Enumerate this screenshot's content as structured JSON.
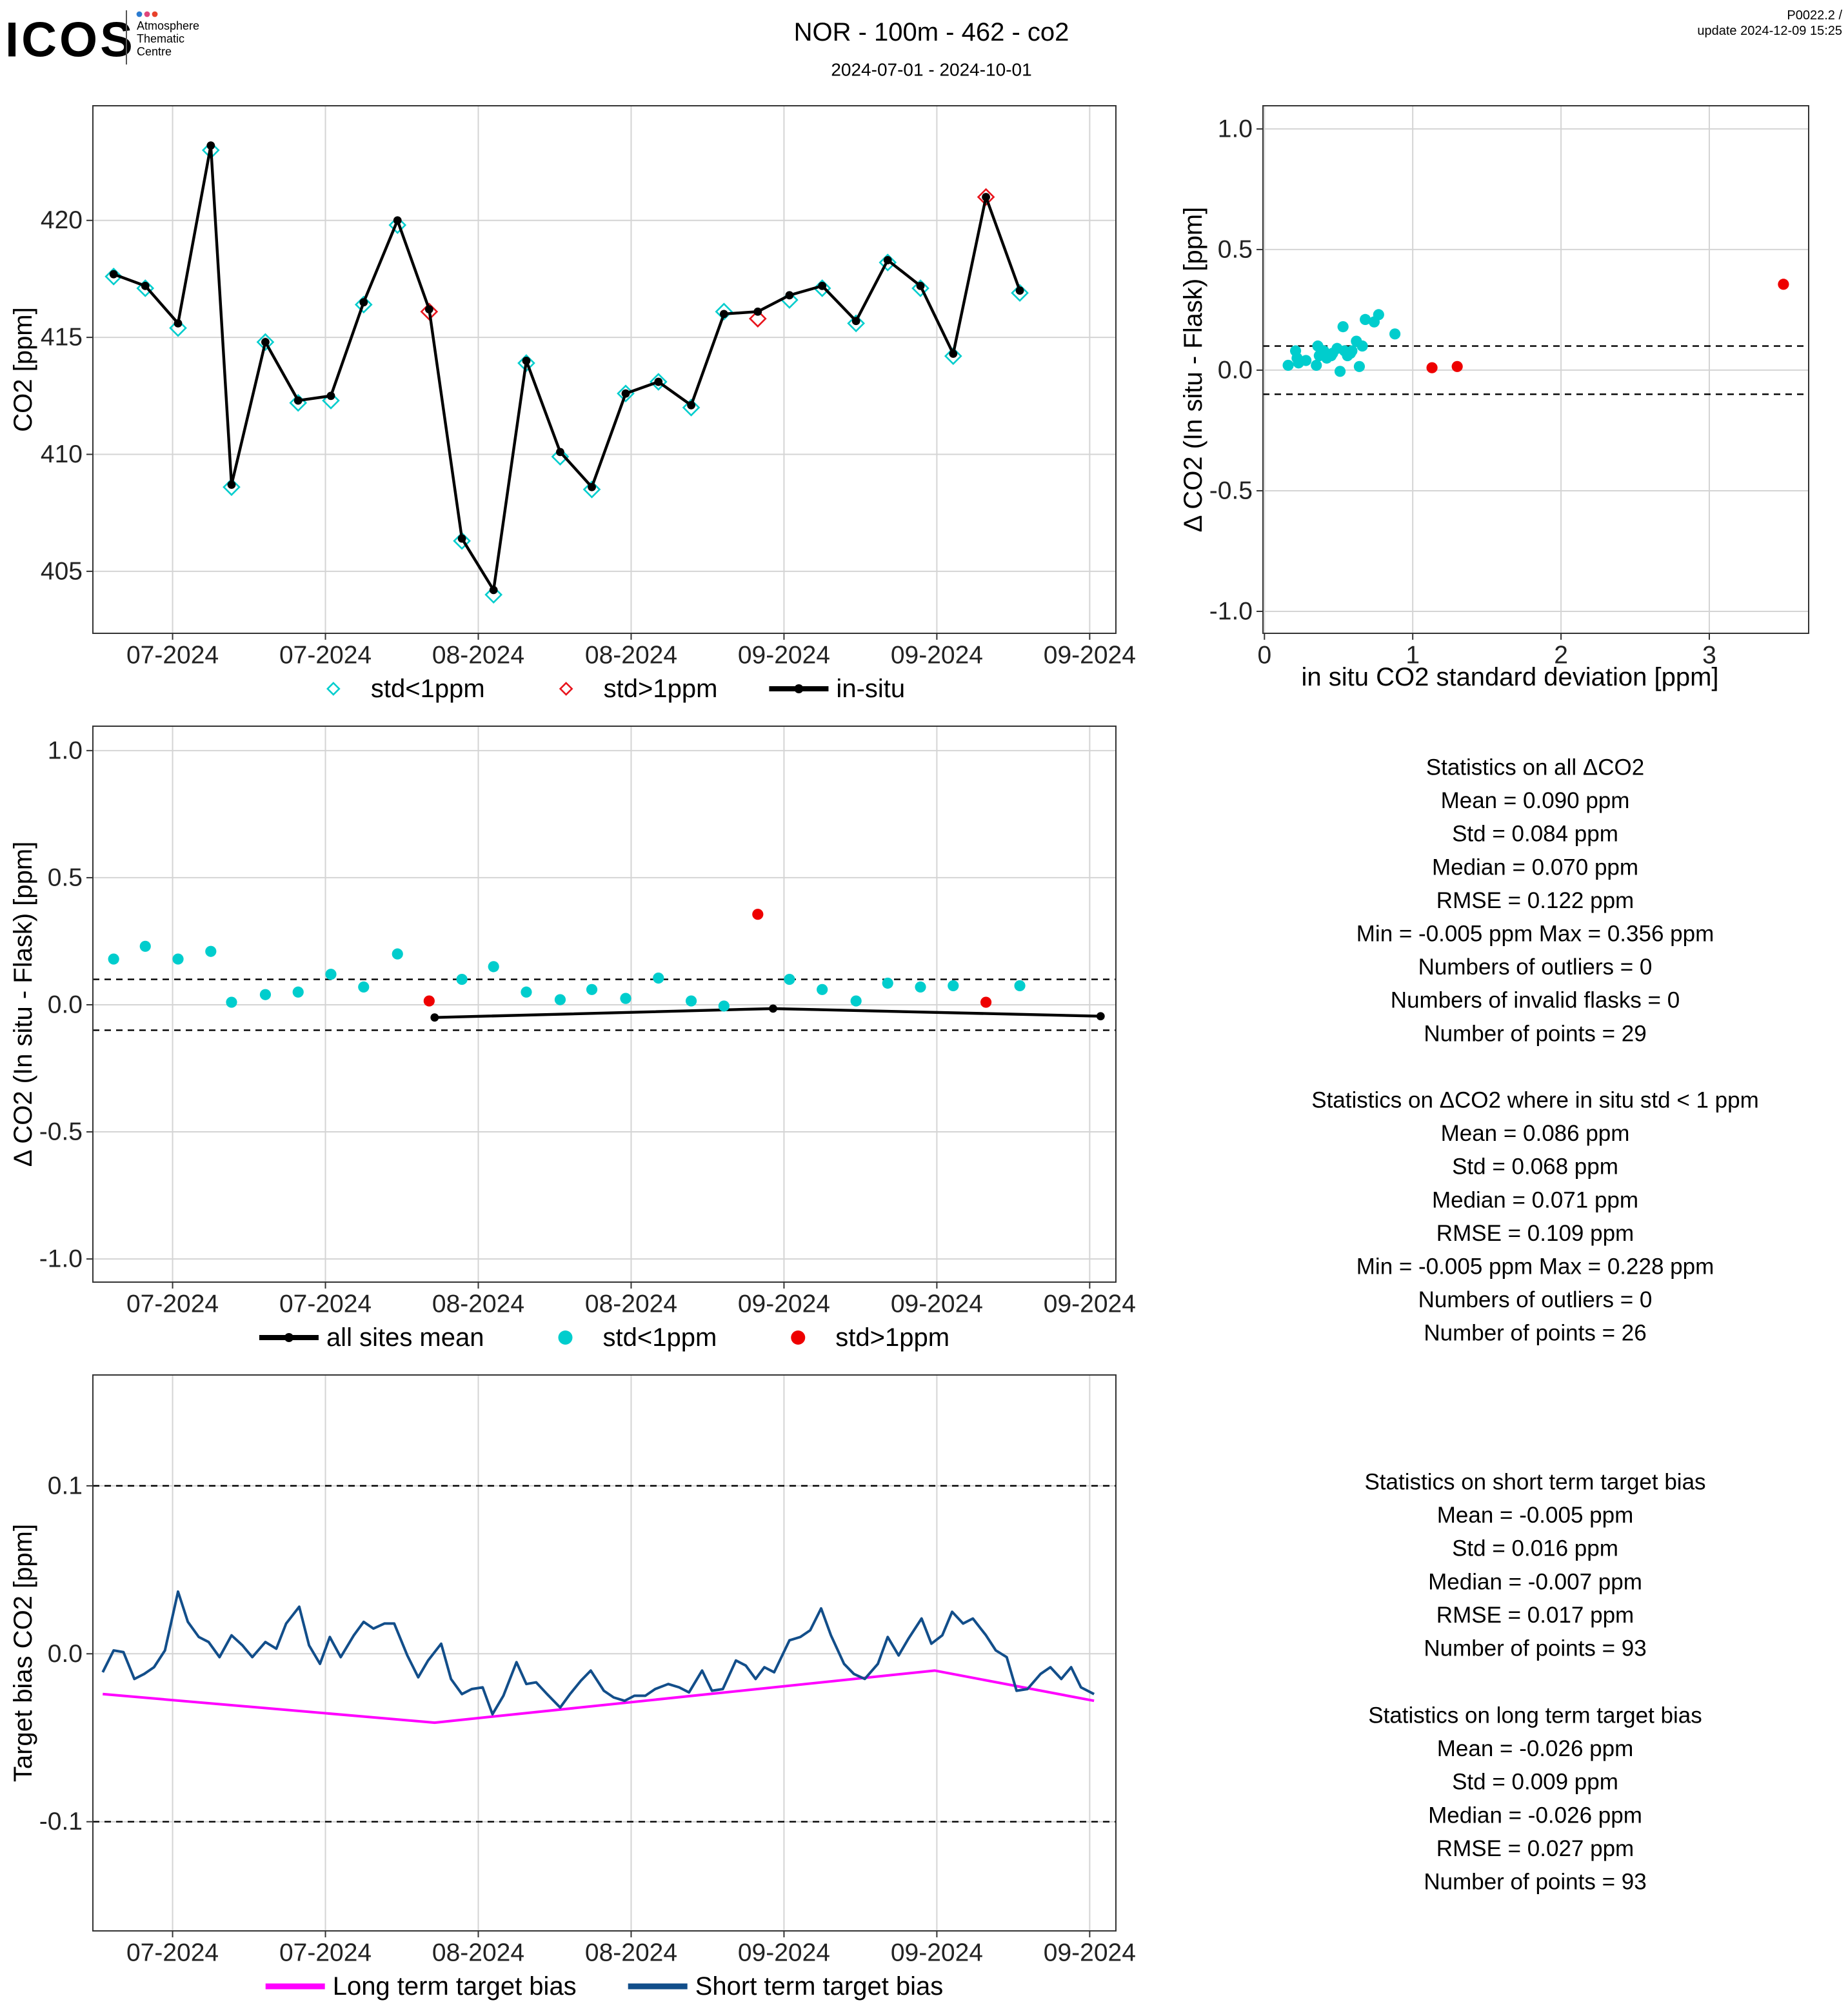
{
  "header": {
    "logo": "ICOS",
    "logo_lines": [
      "Atmosphere",
      "Thematic",
      "Centre"
    ],
    "title": "NOR - 100m - 462 - co2",
    "subtitle": "2024-07-01 - 2024-10-01",
    "corner_lines": [
      "P0022.2 /",
      "update  2024-12-09 15:25"
    ]
  },
  "chart_data": [
    {
      "type": "line",
      "y_label": "CO2 [ppm]",
      "grid": true,
      "legend": "bottom",
      "xlim": [
        -7.3,
        86.4
      ],
      "ylim": [
        402.35,
        424.9
      ],
      "xticks": [
        {
          "value": 0,
          "label": "07-2024"
        },
        {
          "value": 14,
          "label": "07-2024"
        },
        {
          "value": 28,
          "label": "08-2024"
        },
        {
          "value": 42,
          "label": "08-2024"
        },
        {
          "value": 56,
          "label": "09-2024"
        },
        {
          "value": 70,
          "label": "09-2024"
        },
        {
          "value": 84,
          "label": "09-2024"
        }
      ],
      "yticks": [
        405,
        410,
        415,
        420
      ],
      "series": [
        {
          "name": "std<1ppm",
          "color": "#00cdcd",
          "marker": "diamond",
          "x": [
            -5.4,
            -2.5,
            0.5,
            3.5,
            5.4,
            8.5,
            11.5,
            14.5,
            17.5,
            20.6,
            23.5,
            26.5,
            29.4,
            32.4,
            35.5,
            38.4,
            41.5,
            44.5,
            47.5,
            50.5,
            53.6,
            56.5,
            59.5,
            62.6,
            65.5,
            68.5,
            71.5,
            74.5,
            77.6
          ],
          "values": [
            417.6,
            417.1,
            415.4,
            423.0,
            408.6,
            414.8,
            412.2,
            412.3,
            416.4,
            419.8,
            null,
            406.3,
            404.0,
            413.9,
            409.9,
            408.5,
            412.6,
            413.1,
            412.0,
            416.1,
            null,
            416.6,
            417.1,
            415.6,
            418.2,
            417.1,
            414.2,
            null,
            416.9
          ]
        },
        {
          "name": "std>1ppm",
          "color": "#e8141c",
          "marker": "diamond",
          "x": [
            -5.4,
            -2.5,
            0.5,
            3.5,
            5.4,
            8.5,
            11.5,
            14.5,
            17.5,
            20.6,
            23.5,
            26.5,
            29.4,
            32.4,
            35.5,
            38.4,
            41.5,
            44.5,
            47.5,
            50.5,
            53.6,
            56.5,
            59.5,
            62.6,
            65.5,
            68.5,
            71.5,
            74.5,
            77.6
          ],
          "values": [
            null,
            null,
            null,
            null,
            null,
            null,
            null,
            null,
            null,
            null,
            416.1,
            null,
            null,
            null,
            null,
            null,
            null,
            null,
            null,
            null,
            415.8,
            null,
            null,
            null,
            null,
            null,
            null,
            421.0,
            null
          ]
        },
        {
          "name": "in-situ",
          "color": "#000000",
          "marker": "line-dot",
          "x": [
            -5.4,
            -2.5,
            0.5,
            3.5,
            5.4,
            8.5,
            11.5,
            14.5,
            17.5,
            20.6,
            23.5,
            26.5,
            29.4,
            32.4,
            35.5,
            38.4,
            41.5,
            44.5,
            47.5,
            50.5,
            53.6,
            56.5,
            59.5,
            62.6,
            65.5,
            68.5,
            71.5,
            74.5,
            77.6
          ],
          "values": [
            417.7,
            417.2,
            415.6,
            423.2,
            408.7,
            414.8,
            412.3,
            412.5,
            416.5,
            420.0,
            416.2,
            406.4,
            404.2,
            414.0,
            410.1,
            408.6,
            412.6,
            413.1,
            412.1,
            416.0,
            416.1,
            416.8,
            417.2,
            415.7,
            418.3,
            417.2,
            414.3,
            421.0,
            417.0
          ]
        }
      ]
    },
    {
      "type": "scatter",
      "x_label": "in situ CO2 standard deviation [ppm]",
      "y_label": "Δ CO2 (In situ - Flask) [ppm]",
      "grid": true,
      "xlim": [
        -0.01,
        3.67
      ],
      "ylim": [
        -1.091,
        1.096
      ],
      "xticks": [
        0,
        1,
        2,
        3
      ],
      "yticks": [
        {
          "value": -1,
          "label": "-1.0"
        },
        {
          "value": -0.5,
          "label": "-0.5"
        },
        {
          "value": 0,
          "label": "0.0"
        },
        {
          "value": 0.5,
          "label": "0.5"
        },
        {
          "value": 1,
          "label": "1.0"
        }
      ],
      "reference_lines": [
        0.1,
        -0.1
      ],
      "series": [
        {
          "color": "#00cdcd",
          "marker": "circle",
          "x": [
            0.16,
            0.21,
            0.23,
            0.28,
            0.35,
            0.36,
            0.37,
            0.4,
            0.42,
            0.46,
            0.49,
            0.51,
            0.53,
            0.54,
            0.56,
            0.58,
            0.59,
            0.62,
            0.64,
            0.66,
            0.68,
            0.74,
            0.77,
            0.88,
            0.22,
            0.45
          ],
          "values": [
            0.02,
            0.08,
            0.03,
            0.04,
            0.02,
            0.1,
            0.06,
            0.08,
            0.05,
            0.07,
            0.09,
            -0.005,
            0.18,
            0.08,
            0.06,
            0.07,
            0.08,
            0.12,
            0.015,
            0.1,
            0.21,
            0.2,
            0.23,
            0.15,
            0.05,
            0.06
          ]
        },
        {
          "color": "#ee0000",
          "marker": "circle",
          "x": [
            1.13,
            1.3,
            3.5
          ],
          "values": [
            0.01,
            0.015,
            0.356
          ]
        }
      ]
    },
    {
      "type": "line",
      "y_label": "Δ CO2 (In situ - Flask) [ppm]",
      "grid": true,
      "legend": "bottom",
      "xlim": [
        -7.3,
        86.4
      ],
      "ylim": [
        -1.091,
        1.096
      ],
      "xticks": [
        {
          "value": 0,
          "label": "07-2024"
        },
        {
          "value": 14,
          "label": "07-2024"
        },
        {
          "value": 28,
          "label": "08-2024"
        },
        {
          "value": 42,
          "label": "08-2024"
        },
        {
          "value": 56,
          "label": "09-2024"
        },
        {
          "value": 70,
          "label": "09-2024"
        },
        {
          "value": 84,
          "label": "09-2024"
        }
      ],
      "yticks": [
        {
          "value": -1,
          "label": "-1.0"
        },
        {
          "value": -0.5,
          "label": "-0.5"
        },
        {
          "value": 0,
          "label": "0.0"
        },
        {
          "value": 0.5,
          "label": "0.5"
        },
        {
          "value": 1,
          "label": "1.0"
        }
      ],
      "reference_lines": [
        0.1,
        -0.1
      ],
      "series": [
        {
          "name": "all sites mean",
          "color": "#000000",
          "marker": "line-dot",
          "x": [
            24.0,
            55.0,
            85.0
          ],
          "values": [
            -0.05,
            -0.015,
            -0.045
          ]
        },
        {
          "name": "std<1ppm",
          "color": "#00cdcd",
          "marker": "circle",
          "x": [
            -5.4,
            -2.5,
            0.5,
            3.5,
            5.4,
            8.5,
            11.5,
            14.5,
            17.5,
            20.6,
            23.5,
            26.5,
            29.4,
            32.4,
            35.5,
            38.4,
            41.5,
            44.5,
            47.5,
            50.5,
            53.6,
            56.5,
            59.5,
            62.6,
            65.5,
            68.5,
            71.5,
            74.5,
            77.6
          ],
          "values": [
            0.18,
            0.23,
            0.18,
            0.21,
            0.01,
            0.04,
            0.05,
            0.12,
            0.07,
            0.2,
            null,
            0.1,
            0.15,
            0.05,
            0.02,
            0.06,
            0.025,
            0.105,
            0.015,
            -0.005,
            null,
            0.1,
            0.06,
            0.015,
            0.085,
            0.07,
            0.075,
            null,
            0.075
          ]
        },
        {
          "name": "std>1ppm",
          "color": "#ee0000",
          "marker": "circle",
          "x": [
            -5.4,
            -2.5,
            0.5,
            3.5,
            5.4,
            8.5,
            11.5,
            14.5,
            17.5,
            20.6,
            23.5,
            26.5,
            29.4,
            32.4,
            35.5,
            38.4,
            41.5,
            44.5,
            47.5,
            50.5,
            53.6,
            56.5,
            59.5,
            62.6,
            65.5,
            68.5,
            71.5,
            74.5,
            77.6
          ],
          "values": [
            null,
            null,
            null,
            null,
            null,
            null,
            null,
            null,
            null,
            null,
            0.015,
            null,
            null,
            null,
            null,
            null,
            null,
            null,
            null,
            null,
            0.356,
            null,
            null,
            null,
            null,
            null,
            null,
            0.01,
            null
          ]
        }
      ]
    },
    {
      "type": "line",
      "y_label": "Target bias CO2 [ppm]",
      "grid": true,
      "legend": "bottom",
      "xlim": [
        -7.3,
        86.4
      ],
      "ylim": [
        -0.165,
        0.166
      ],
      "xticks": [
        {
          "value": 0,
          "label": "07-2024"
        },
        {
          "value": 14,
          "label": "07-2024"
        },
        {
          "value": 28,
          "label": "08-2024"
        },
        {
          "value": 42,
          "label": "08-2024"
        },
        {
          "value": 56,
          "label": "09-2024"
        },
        {
          "value": 70,
          "label": "09-2024"
        },
        {
          "value": 84,
          "label": "09-2024"
        }
      ],
      "yticks": [
        {
          "value": -0.1,
          "label": "-0.1"
        },
        {
          "value": 0,
          "label": "0.0"
        },
        0.1
      ],
      "reference_lines": [
        0.1,
        -0.1
      ],
      "series": [
        {
          "name": "Long term target bias",
          "color": "#ff00ff",
          "marker": "line",
          "x": [
            -6.4,
            24.0,
            69.8,
            84.4
          ],
          "values": [
            -0.024,
            -0.041,
            -0.01,
            -0.028
          ]
        },
        {
          "name": "Short term target bias",
          "color": "#124e8a",
          "marker": "line",
          "x": [
            -6.4,
            -5.4,
            -4.5,
            -3.5,
            -2.6,
            -1.7,
            -0.7,
            0.5,
            1.4,
            2.4,
            3.3,
            4.3,
            5.4,
            6.4,
            7.3,
            8.5,
            9.5,
            10.4,
            11.6,
            12.5,
            13.5,
            14.4,
            15.4,
            16.6,
            17.5,
            18.4,
            19.4,
            20.3,
            21.5,
            22.5,
            23.4,
            24.6,
            25.5,
            26.5,
            27.4,
            28.4,
            29.3,
            30.3,
            31.5,
            32.4,
            33.3,
            34.3,
            35.5,
            36.4,
            37.4,
            38.3,
            39.5,
            40.4,
            41.4,
            42.3,
            43.3,
            44.2,
            45.4,
            46.4,
            47.3,
            48.5,
            49.4,
            50.4,
            51.6,
            52.5,
            53.4,
            54.2,
            55.1,
            56.5,
            57.5,
            58.4,
            59.4,
            60.3,
            61.5,
            62.4,
            63.4,
            64.6,
            65.5,
            66.5,
            67.4,
            68.6,
            69.5,
            70.5,
            71.4,
            72.4,
            73.3,
            74.5,
            75.4,
            76.4,
            77.3,
            78.3,
            79.5,
            80.4,
            81.4,
            82.3,
            83.2,
            84.4
          ],
          "values": [
            -0.011,
            0.002,
            0.001,
            -0.015,
            -0.012,
            -0.008,
            0.002,
            0.037,
            0.019,
            0.01,
            0.007,
            -0.002,
            0.011,
            0.005,
            -0.002,
            0.007,
            0.003,
            0.018,
            0.028,
            0.005,
            -0.006,
            0.01,
            -0.002,
            0.011,
            0.019,
            0.015,
            0.018,
            0.018,
            -0.001,
            -0.014,
            -0.004,
            0.006,
            -0.015,
            -0.024,
            -0.021,
            -0.02,
            -0.036,
            -0.025,
            -0.005,
            -0.018,
            -0.017,
            -0.024,
            -0.032,
            -0.024,
            -0.016,
            -0.01,
            -0.022,
            -0.026,
            -0.028,
            -0.025,
            -0.025,
            -0.021,
            -0.018,
            -0.02,
            -0.023,
            -0.01,
            -0.022,
            -0.021,
            -0.004,
            -0.007,
            -0.015,
            -0.008,
            -0.011,
            0.008,
            0.01,
            0.014,
            0.027,
            0.011,
            -0.006,
            -0.012,
            -0.015,
            -0.006,
            0.01,
            -0.001,
            0.009,
            0.021,
            0.006,
            0.011,
            0.025,
            0.018,
            0.021,
            0.011,
            0.002,
            -0.002,
            -0.022,
            -0.021,
            -0.012,
            -0.008,
            -0.015,
            -0.008,
            -0.02,
            -0.024
          ]
        }
      ]
    }
  ],
  "statistics": [
    {
      "title": "Statistics on all ΔCO2",
      "lines": [
        "Mean =  0.090 ppm",
        "Std =  0.084 ppm",
        "Median =  0.070 ppm",
        "RMSE =  0.122 ppm",
        "Min =  -0.005 ppm Max =  0.356 ppm",
        "Numbers of outliers =  0",
        "Numbers of invalid flasks =  0",
        "Number of points =  29"
      ]
    },
    {
      "title": "Statistics on ΔCO2 where in situ std < 1 ppm",
      "lines": [
        "Mean =  0.086 ppm",
        "Std =  0.068 ppm",
        "Median =  0.071 ppm",
        "RMSE =  0.109 ppm",
        "Min =  -0.005 ppm Max =  0.228 ppm",
        "Numbers of outliers =  0",
        "Number of points =  26"
      ]
    },
    {
      "title": "Statistics on short term target bias",
      "lines": [
        "Mean =  -0.005 ppm",
        "Std =  0.016 ppm",
        "Median =  -0.007 ppm",
        "RMSE =  0.017 ppm",
        "Number of points =  93"
      ]
    },
    {
      "title": "Statistics on long term target bias",
      "lines": [
        "Mean =  -0.026 ppm",
        "Std =  0.009 ppm",
        "Median =  -0.026 ppm",
        "RMSE =  0.027 ppm",
        "Number of points =  93"
      ]
    }
  ]
}
